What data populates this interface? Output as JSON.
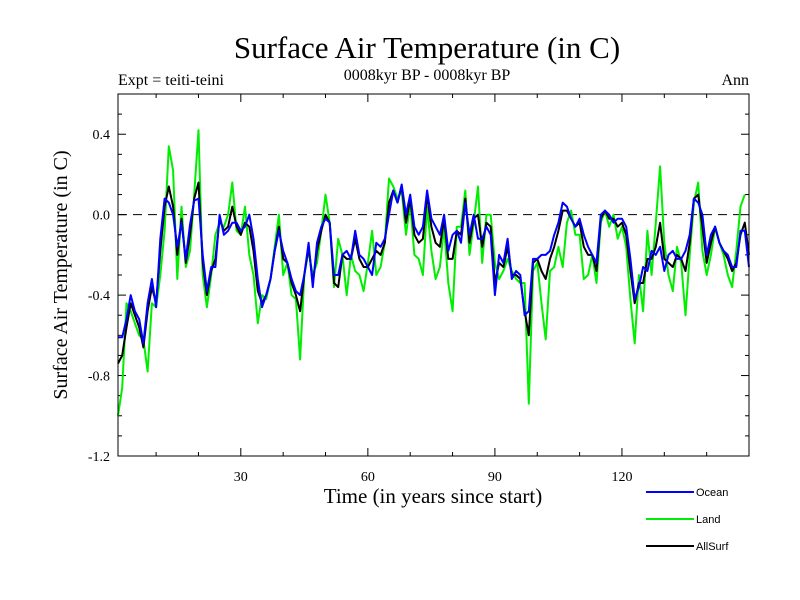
{
  "chart_data": {
    "type": "line",
    "title": "Surface Air Temperature (in C)",
    "subtitle": "0008kyr BP - 0008kyr BP",
    "left_label": "Expt = teiti-teini",
    "right_label": "Ann",
    "xlabel": "Time (in years since start)",
    "ylabel": "Surface Air Temperature (in C)",
    "xlim": [
      1,
      150
    ],
    "ylim": [
      -1.2,
      0.6
    ],
    "xticks": [
      30,
      60,
      90,
      120
    ],
    "yticks": [
      -1.2,
      -0.8,
      -0.4,
      0.0,
      0.4
    ],
    "ytick_labels": [
      "-1.2",
      "-0.8",
      "-0.4",
      "0.0",
      "0.4"
    ],
    "reference_line": 0.0,
    "legend_position": "bottom-right",
    "series": [
      {
        "name": "Ocean",
        "color": "#0000ff",
        "values": [
          -0.61,
          -0.61,
          -0.52,
          -0.4,
          -0.48,
          -0.52,
          -0.64,
          -0.44,
          -0.32,
          -0.46,
          -0.12,
          0.08,
          0.06,
          0.0,
          -0.16,
          -0.04,
          -0.22,
          -0.05,
          0.07,
          0.08,
          -0.2,
          -0.38,
          -0.26,
          -0.26,
          0.0,
          -0.1,
          -0.08,
          -0.04,
          -0.04,
          -0.08,
          -0.06,
          0.0,
          -0.12,
          -0.32,
          -0.46,
          -0.4,
          -0.32,
          -0.18,
          -0.08,
          -0.18,
          -0.24,
          -0.32,
          -0.38,
          -0.4,
          -0.3,
          -0.14,
          -0.36,
          -0.14,
          -0.06,
          -0.02,
          -0.04,
          -0.3,
          -0.3,
          -0.2,
          -0.18,
          -0.22,
          -0.08,
          -0.2,
          -0.22,
          -0.26,
          -0.3,
          -0.14,
          -0.16,
          -0.12,
          0.0,
          0.12,
          0.06,
          0.15,
          0.0,
          0.1,
          -0.06,
          -0.1,
          -0.06,
          0.12,
          -0.02,
          -0.06,
          -0.1,
          0.0,
          -0.18,
          -0.1,
          -0.08,
          -0.14,
          0.06,
          -0.1,
          0.0,
          -0.12,
          -0.12,
          -0.06,
          -0.1,
          -0.4,
          -0.2,
          -0.24,
          -0.12,
          -0.32,
          -0.28,
          -0.3,
          -0.5,
          -0.48,
          -0.22,
          -0.22,
          -0.2,
          -0.2,
          -0.18,
          -0.1,
          -0.04,
          0.06,
          0.04,
          -0.02,
          -0.06,
          -0.02,
          -0.1,
          -0.16,
          -0.2,
          -0.24,
          0.0,
          0.02,
          0.0,
          -0.04,
          -0.02,
          -0.02,
          -0.06,
          -0.22,
          -0.42,
          -0.36,
          -0.26,
          -0.28,
          -0.18,
          -0.2,
          -0.16,
          -0.28,
          -0.2,
          -0.18,
          -0.22,
          -0.22,
          -0.18,
          -0.1,
          0.08,
          0.06,
          0.0,
          -0.2,
          -0.1,
          -0.06,
          -0.14,
          -0.18,
          -0.2,
          -0.26,
          -0.26,
          -0.08,
          -0.08,
          -0.26
        ]
      },
      {
        "name": "Land",
        "color": "#00ee00",
        "values": [
          -1.0,
          -0.86,
          -0.44,
          -0.48,
          -0.54,
          -0.6,
          -0.62,
          -0.78,
          -0.44,
          -0.46,
          -0.3,
          -0.08,
          0.34,
          0.22,
          -0.32,
          0.04,
          -0.26,
          -0.18,
          0.1,
          0.42,
          -0.3,
          -0.46,
          -0.3,
          -0.1,
          -0.04,
          -0.06,
          0.0,
          0.16,
          -0.08,
          -0.1,
          0.04,
          -0.2,
          -0.3,
          -0.54,
          -0.4,
          -0.42,
          -0.32,
          -0.16,
          0.0,
          -0.3,
          -0.24,
          -0.4,
          -0.42,
          -0.72,
          -0.3,
          -0.18,
          -0.3,
          -0.24,
          -0.08,
          0.1,
          -0.04,
          -0.36,
          -0.12,
          -0.2,
          -0.4,
          -0.2,
          -0.28,
          -0.3,
          -0.38,
          -0.24,
          -0.08,
          -0.3,
          -0.26,
          -0.14,
          0.18,
          0.14,
          0.08,
          0.12,
          -0.1,
          0.06,
          -0.2,
          -0.22,
          -0.3,
          0.04,
          -0.18,
          -0.32,
          -0.26,
          -0.06,
          -0.34,
          -0.48,
          -0.06,
          -0.06,
          0.12,
          -0.2,
          -0.04,
          0.14,
          -0.24,
          0.0,
          0.0,
          -0.24,
          -0.32,
          -0.28,
          -0.22,
          -0.28,
          -0.32,
          -0.34,
          -0.34,
          -0.94,
          -0.28,
          -0.24,
          -0.44,
          -0.62,
          -0.28,
          -0.26,
          -0.16,
          -0.26,
          -0.04,
          0.02,
          -0.1,
          -0.1,
          -0.32,
          -0.3,
          -0.2,
          -0.34,
          -0.04,
          0.02,
          -0.06,
          0.0,
          -0.12,
          -0.06,
          -0.16,
          -0.42,
          -0.64,
          -0.3,
          -0.48,
          -0.08,
          -0.3,
          -0.04,
          0.24,
          -0.14,
          -0.3,
          -0.38,
          -0.16,
          -0.24,
          -0.5,
          -0.2,
          0.06,
          0.16,
          -0.18,
          -0.3,
          -0.2,
          -0.06,
          -0.14,
          -0.2,
          -0.3,
          -0.36,
          -0.18,
          0.04,
          0.1
        ]
      },
      {
        "name": "AllSurf",
        "color": "#000000",
        "values": [
          -0.74,
          -0.7,
          -0.56,
          -0.44,
          -0.5,
          -0.56,
          -0.66,
          -0.48,
          -0.36,
          -0.44,
          -0.18,
          0.04,
          0.14,
          0.04,
          -0.2,
          -0.02,
          -0.24,
          -0.1,
          0.08,
          0.16,
          -0.24,
          -0.4,
          -0.28,
          -0.22,
          -0.02,
          -0.08,
          -0.06,
          0.04,
          -0.06,
          -0.1,
          -0.04,
          -0.06,
          -0.18,
          -0.38,
          -0.44,
          -0.4,
          -0.32,
          -0.18,
          -0.06,
          -0.22,
          -0.24,
          -0.34,
          -0.4,
          -0.48,
          -0.3,
          -0.16,
          -0.34,
          -0.18,
          -0.08,
          0.0,
          -0.04,
          -0.34,
          -0.36,
          -0.2,
          -0.22,
          -0.22,
          -0.12,
          -0.22,
          -0.26,
          -0.26,
          -0.22,
          -0.18,
          -0.2,
          -0.14,
          0.06,
          0.12,
          0.06,
          0.14,
          -0.04,
          0.08,
          -0.1,
          -0.14,
          -0.12,
          0.1,
          -0.06,
          -0.14,
          -0.16,
          -0.02,
          -0.22,
          -0.22,
          -0.08,
          -0.1,
          0.08,
          -0.14,
          -0.02,
          0.0,
          -0.16,
          -0.04,
          -0.06,
          -0.34,
          -0.24,
          -0.26,
          -0.16,
          -0.3,
          -0.3,
          -0.32,
          -0.48,
          -0.6,
          -0.24,
          -0.22,
          -0.28,
          -0.32,
          -0.22,
          -0.16,
          -0.08,
          0.02,
          0.02,
          -0.02,
          -0.06,
          -0.04,
          -0.16,
          -0.2,
          -0.2,
          -0.28,
          -0.02,
          0.02,
          -0.02,
          -0.02,
          -0.06,
          -0.04,
          -0.1,
          -0.28,
          -0.44,
          -0.34,
          -0.34,
          -0.22,
          -0.22,
          -0.16,
          -0.04,
          -0.22,
          -0.24,
          -0.26,
          -0.2,
          -0.22,
          -0.28,
          -0.14,
          0.08,
          0.1,
          -0.06,
          -0.24,
          -0.14,
          -0.06,
          -0.14,
          -0.18,
          -0.22,
          -0.28,
          -0.24,
          -0.1,
          -0.04,
          -0.2
        ]
      }
    ]
  }
}
